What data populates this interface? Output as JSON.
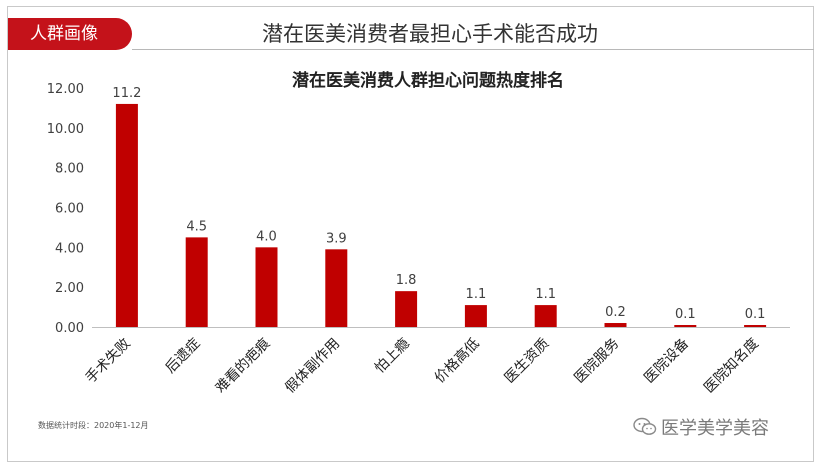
{
  "header": {
    "tag": "人群画像",
    "title": "潜在医美消费者最担心手术能否成功"
  },
  "footer": {
    "note": "数据统计时段：2020年1-12月",
    "watermark": "医学美学美容",
    "watermark_icon": "wechat-icon"
  },
  "colors": {
    "accent": "#c00000",
    "tag_bg": "#c4121a"
  },
  "chart_data": {
    "type": "bar",
    "title": "潜在医美消费人群担心问题热度排名",
    "xlabel": "",
    "ylabel": "",
    "categories": [
      "手术失败",
      "后遗症",
      "难看的疤痕",
      "假体副作用",
      "怕上瘾",
      "价格高低",
      "医生资质",
      "医院服务",
      "医院设备",
      "医院知名度"
    ],
    "values": [
      11.2,
      4.5,
      4.0,
      3.9,
      1.8,
      1.1,
      1.1,
      0.2,
      0.1,
      0.1
    ],
    "value_labels": [
      "11.2",
      "4.5",
      "4.0",
      "3.9",
      "1.8",
      "1.1",
      "1.1",
      "0.2",
      "0.1",
      "0.1"
    ],
    "ylim": [
      0,
      12
    ],
    "yticks": [
      0,
      2,
      4,
      6,
      8,
      10,
      12
    ],
    "ytick_labels": [
      "0.00",
      "2.00",
      "4.00",
      "6.00",
      "8.00",
      "10.00",
      "12.00"
    ],
    "grid": false,
    "legend": "none"
  }
}
